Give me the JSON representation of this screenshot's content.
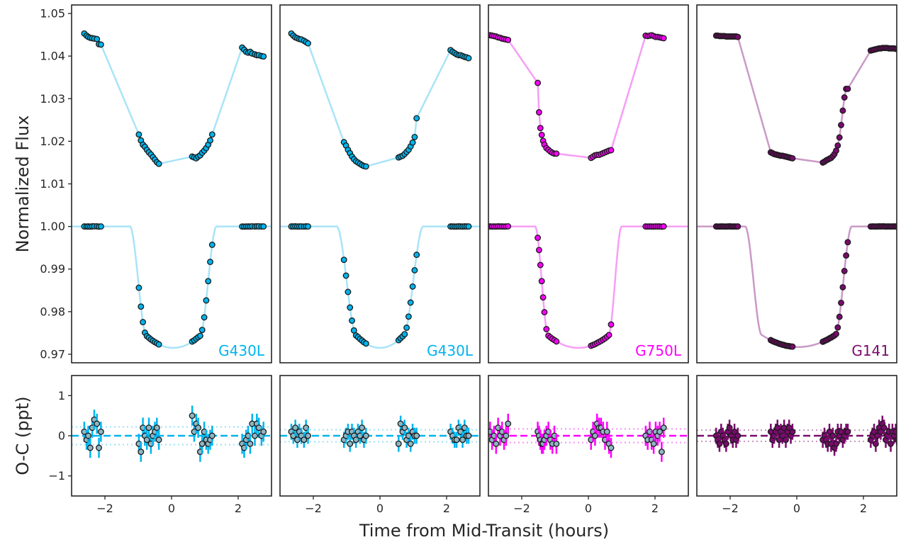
{
  "figure": {
    "ylabel_top": "Normalized Flux",
    "ylabel_bottom": "O-C (ppt)",
    "xlabel": "Time from Mid-Transit (hours)"
  },
  "chart_data": {
    "type": "line",
    "description_axes": {
      "top_ylim": [
        0.968,
        1.052
      ],
      "top_yticks": [
        0.97,
        0.98,
        0.99,
        1.0,
        1.01,
        1.02,
        1.03,
        1.04,
        1.05
      ],
      "top_ytick_labels": [
        "0.97",
        "0.98",
        "0.99",
        "1.00",
        "1.01",
        "1.02",
        "1.03",
        "1.04",
        "1.05"
      ],
      "bottom_ylim": [
        -1.5,
        1.5
      ],
      "bottom_yticks": [
        -1,
        0,
        1
      ],
      "bottom_ytick_labels": [
        "−1",
        "0",
        "1"
      ],
      "xlim": [
        -3.0,
        3.0
      ],
      "xticks": [
        -2,
        0,
        2
      ],
      "xtick_labels": [
        "−2",
        "0",
        "2"
      ],
      "grid": false
    },
    "panels": [
      {
        "instrument": "G430L",
        "color": "#00b4ee",
        "model_color": "#a8e4f8",
        "transit": {
          "t14": 2.6,
          "t23": 1.6,
          "depth": 0.0285,
          "t0": 0.05
        },
        "detrended_offset": 0.0,
        "raw": {
          "offset": 0.043,
          "ramp": "linear",
          "points_x": [
            -2.62,
            -2.55,
            -2.5,
            -2.44,
            -2.38,
            -2.32,
            -2.24,
            -2.18,
            -2.12,
            -0.98,
            -0.92,
            -0.86,
            -0.8,
            -0.74,
            -0.68,
            -0.62,
            -0.56,
            -0.5,
            -0.44,
            -0.38,
            0.62,
            0.68,
            0.74,
            0.8,
            0.86,
            0.92,
            0.98,
            1.04,
            1.1,
            1.16,
            1.22,
            2.12,
            2.18,
            2.24,
            2.3,
            2.36,
            2.42,
            2.5,
            2.56,
            2.62,
            2.7,
            2.76
          ],
          "points_y": [
            1.0453,
            1.0448,
            1.0445,
            1.0443,
            1.0442,
            1.0441,
            1.044,
            1.0428,
            1.0427,
            1.0216,
            1.0202,
            1.0192,
            1.0187,
            1.018,
            1.0174,
            1.0169,
            1.0163,
            1.0157,
            1.0151,
            1.0147,
            1.0164,
            1.0162,
            1.016,
            1.0164,
            1.0167,
            1.0173,
            1.0178,
            1.0184,
            1.0192,
            1.0202,
            1.0216,
            1.042,
            1.0415,
            1.041,
            1.0408,
            1.041,
            1.0406,
            1.0404,
            1.0402,
            1.0402,
            1.04,
            1.0399
          ]
        },
        "detrended_points_x": [
          -2.62,
          -2.55,
          -2.5,
          -2.44,
          -2.38,
          -2.32,
          -2.24,
          -2.18,
          -2.12,
          -0.98,
          -0.92,
          -0.86,
          -0.8,
          -0.74,
          -0.68,
          -0.62,
          -0.56,
          -0.5,
          -0.44,
          -0.38,
          0.62,
          0.68,
          0.74,
          0.8,
          0.86,
          0.92,
          0.98,
          1.04,
          1.1,
          1.16,
          1.22,
          2.12,
          2.18,
          2.24,
          2.3,
          2.36,
          2.42,
          2.5,
          2.56,
          2.62,
          2.7,
          2.76
        ],
        "residuals_ppt": [
          0.1,
          -0.1,
          0.0,
          -0.3,
          0.2,
          0.4,
          0.3,
          -0.3,
          0.1,
          -0.2,
          -0.4,
          0.2,
          0.0,
          -0.1,
          0.2,
          -0.2,
          0.0,
          0.1,
          0.2,
          -0.1,
          0.5,
          0.1,
          0.3,
          0.2,
          -0.4,
          -0.2,
          0.1,
          -0.1,
          -0.2,
          -0.1,
          0.0,
          -0.2,
          -0.3,
          -0.1,
          0.0,
          -0.2,
          0.3,
          0.0,
          0.3,
          0.2,
          0.0,
          0.1
        ],
        "residual_errors_ppt": 0.25,
        "rms_ppt": 0.22
      },
      {
        "instrument": "G430L",
        "color": "#00b4ee",
        "model_color": "#a8e4f8",
        "transit": {
          "t14": 2.6,
          "t23": 1.4,
          "depth": 0.0285,
          "t0": 0.0
        },
        "detrended_offset": 0.0,
        "raw": {
          "offset": 0.043,
          "ramp": "linear",
          "points_x": [
            -2.66,
            -2.6,
            -2.54,
            -2.48,
            -2.42,
            -2.36,
            -2.28,
            -2.22,
            -2.16,
            -1.08,
            -1.02,
            -0.96,
            -0.9,
            -0.84,
            -0.78,
            -0.72,
            -0.66,
            -0.6,
            -0.54,
            -0.48,
            -0.42,
            0.56,
            0.62,
            0.68,
            0.74,
            0.8,
            0.86,
            0.92,
            0.98,
            1.04,
            1.1,
            2.12,
            2.18,
            2.24,
            2.3,
            2.36,
            2.42,
            2.48,
            2.54,
            2.6,
            2.66
          ],
          "points_y": [
            1.0453,
            1.0448,
            1.0444,
            1.0442,
            1.044,
            1.0439,
            1.0436,
            1.0433,
            1.043,
            1.0198,
            1.019,
            1.018,
            1.0172,
            1.0164,
            1.0158,
            1.0153,
            1.015,
            1.0147,
            1.0144,
            1.0142,
            1.0141,
            1.0162,
            1.0164,
            1.0166,
            1.017,
            1.0175,
            1.018,
            1.0188,
            1.0197,
            1.021,
            1.0254,
            1.0414,
            1.041,
            1.0407,
            1.0404,
            1.0402,
            1.0402,
            1.04,
            1.0398,
            1.0397,
            1.0395
          ]
        },
        "detrended_points_x": [
          -2.66,
          -2.6,
          -2.54,
          -2.48,
          -2.42,
          -2.36,
          -2.28,
          -2.22,
          -2.16,
          -1.08,
          -1.02,
          -0.96,
          -0.9,
          -0.84,
          -0.78,
          -0.72,
          -0.66,
          -0.6,
          -0.54,
          -0.48,
          -0.42,
          0.56,
          0.62,
          0.68,
          0.74,
          0.8,
          0.86,
          0.92,
          0.98,
          1.04,
          1.1,
          2.12,
          2.18,
          2.24,
          2.3,
          2.36,
          2.42,
          2.48,
          2.54,
          2.6,
          2.66
        ],
        "residuals_ppt": [
          0.1,
          0.0,
          0.2,
          -0.1,
          0.1,
          0.0,
          -0.1,
          0.2,
          0.0,
          -0.1,
          0.0,
          0.1,
          -0.2,
          0.1,
          0.0,
          -0.1,
          0.1,
          0.0,
          0.2,
          -0.1,
          0.0,
          -0.2,
          0.3,
          0.1,
          0.2,
          -0.1,
          0.0,
          -0.2,
          0.1,
          0.0,
          0.0,
          0.1,
          0.0,
          -0.1,
          -0.1,
          0.2,
          0.1,
          -0.1,
          0.2,
          0.0,
          0.0
        ],
        "residual_errors_ppt": 0.2,
        "rms_ppt": 0.15
      },
      {
        "instrument": "G750L",
        "color": "#ff00ff",
        "model_color": "#f79ef7",
        "transit": {
          "t14": 2.6,
          "t23": 1.8,
          "depth": 0.0285,
          "t0": -0.3
        },
        "detrended_offset": 0.0,
        "raw": {
          "offset": 0.0445,
          "ramp": "flat",
          "points_x": [
            -2.95,
            -2.89,
            -2.83,
            -2.77,
            -2.71,
            -2.65,
            -2.59,
            -2.53,
            -2.47,
            -2.41,
            -1.52,
            -1.48,
            -1.44,
            -1.4,
            -1.36,
            -1.32,
            -1.26,
            -1.2,
            -1.14,
            -1.08,
            -1.02,
            -0.96,
            0.08,
            0.14,
            0.2,
            0.26,
            0.32,
            0.38,
            0.44,
            0.5,
            0.56,
            0.62,
            0.68,
            1.72,
            1.78,
            1.84,
            1.9,
            1.96,
            2.02,
            2.08,
            2.14,
            2.2,
            2.26
          ],
          "points_y": [
            1.0449,
            1.0448,
            1.0447,
            1.0446,
            1.0444,
            1.0443,
            1.0441,
            1.044,
            1.0439,
            1.0438,
            1.0337,
            1.0268,
            1.0231,
            1.0215,
            1.0201,
            1.0192,
            1.0184,
            1.018,
            1.0176,
            1.0173,
            1.0171,
            1.0171,
            1.0161,
            1.0164,
            1.0167,
            1.0168,
            1.0168,
            1.017,
            1.0172,
            1.0174,
            1.0176,
            1.0178,
            1.0179,
            1.0448,
            1.0447,
            1.0448,
            1.0449,
            1.0447,
            1.0445,
            1.0445,
            1.0444,
            1.0443,
            1.0442
          ]
        },
        "detrended_points_x": [
          -2.95,
          -2.89,
          -2.83,
          -2.77,
          -2.71,
          -2.65,
          -2.59,
          -2.53,
          -2.47,
          -2.41,
          -1.52,
          -1.48,
          -1.44,
          -1.4,
          -1.36,
          -1.32,
          -1.26,
          -1.2,
          -1.14,
          -1.08,
          -1.02,
          -0.96,
          0.08,
          0.14,
          0.2,
          0.26,
          0.32,
          0.38,
          0.44,
          0.5,
          0.56,
          0.62,
          0.68,
          1.72,
          1.78,
          1.84,
          1.9,
          1.96,
          2.02,
          2.08,
          2.14,
          2.2,
          2.26
        ],
        "residuals_ppt": [
          0.1,
          -0.1,
          0.0,
          -0.2,
          0.2,
          0.0,
          0.1,
          -0.1,
          0.0,
          0.3,
          0.1,
          0.0,
          -0.1,
          -0.2,
          -0.2,
          -0.1,
          0.0,
          0.1,
          -0.1,
          -0.2,
          0.0,
          -0.2,
          -0.1,
          0.1,
          0.0,
          0.3,
          0.2,
          0.2,
          0.1,
          -0.1,
          0.1,
          -0.2,
          -0.3,
          0.0,
          -0.1,
          0.1,
          -0.1,
          -0.2,
          0.1,
          0.0,
          0.1,
          -0.4,
          0.2
        ],
        "residual_errors_ppt": 0.25,
        "rms_ppt": 0.17
      },
      {
        "instrument": "G141",
        "color": "#7a0a6e",
        "model_color": "#c99ac6",
        "transit": {
          "t14": 3.2,
          "t23": 2.2,
          "depth": 0.0283,
          "t0": 0.05
        },
        "detrended_offset": 0.0,
        "raw": {
          "offset": 0.0444,
          "ramp": "exp",
          "points_x": [
            -2.42,
            -2.37,
            -2.32,
            -2.27,
            -2.22,
            -2.17,
            -2.12,
            -2.07,
            -2.02,
            -1.97,
            -1.92,
            -1.87,
            -1.82,
            -1.77,
            -0.78,
            -0.73,
            -0.68,
            -0.63,
            -0.58,
            -0.53,
            -0.48,
            -0.43,
            -0.38,
            -0.33,
            -0.28,
            -0.23,
            -0.18,
            -0.13,
            0.78,
            0.83,
            0.88,
            0.93,
            0.98,
            1.03,
            1.08,
            1.13,
            1.18,
            1.23,
            1.28,
            1.33,
            1.38,
            1.43,
            1.48,
            1.53,
            2.22,
            2.27,
            2.32,
            2.37,
            2.42,
            2.47,
            2.52,
            2.57,
            2.62,
            2.67,
            2.72,
            2.77,
            2.82,
            2.87,
            2.92,
            2.97,
            3.02,
            3.07
          ],
          "points_y": [
            1.0448,
            1.0448,
            1.0447,
            1.0447,
            1.0447,
            1.0447,
            1.0446,
            1.0446,
            1.0446,
            1.0446,
            1.0446,
            1.0446,
            1.0446,
            1.0445,
            1.0174,
            1.0172,
            1.017,
            1.0169,
            1.0168,
            1.0167,
            1.0166,
            1.0166,
            1.0165,
            1.0164,
            1.0163,
            1.0162,
            1.0161,
            1.016,
            1.015,
            1.0152,
            1.0155,
            1.0157,
            1.0159,
            1.0161,
            1.0165,
            1.017,
            1.0178,
            1.019,
            1.0209,
            1.0238,
            1.0272,
            1.0303,
            1.0323,
            1.0323,
            1.0413,
            1.0414,
            1.0415,
            1.0416,
            1.0417,
            1.0418,
            1.0418,
            1.0419,
            1.0419,
            1.0419,
            1.0419,
            1.0418,
            1.0418,
            1.0418,
            1.0418,
            1.0417,
            1.0417,
            1.0416
          ]
        },
        "detrended_points_x": [
          -2.42,
          -2.37,
          -2.32,
          -2.27,
          -2.22,
          -2.17,
          -2.12,
          -2.07,
          -2.02,
          -1.97,
          -1.92,
          -1.87,
          -1.82,
          -1.77,
          -0.78,
          -0.73,
          -0.68,
          -0.63,
          -0.58,
          -0.53,
          -0.48,
          -0.43,
          -0.38,
          -0.33,
          -0.28,
          -0.23,
          -0.18,
          -0.13,
          0.78,
          0.83,
          0.88,
          0.93,
          0.98,
          1.03,
          1.08,
          1.13,
          1.18,
          1.23,
          1.28,
          1.33,
          1.38,
          1.43,
          1.48,
          1.53,
          2.22,
          2.27,
          2.32,
          2.37,
          2.42,
          2.47,
          2.52,
          2.57,
          2.62,
          2.67,
          2.72,
          2.77,
          2.82,
          2.87,
          2.92,
          2.97,
          3.02,
          3.07
        ],
        "residuals_ppt": [
          0.0,
          -0.1,
          -0.2,
          0.1,
          0.0,
          -0.1,
          -0.2,
          0.1,
          0.2,
          0.0,
          -0.1,
          0.1,
          -0.1,
          0.0,
          0.1,
          -0.1,
          0.0,
          0.1,
          0.2,
          -0.1,
          0.1,
          0.0,
          0.2,
          -0.1,
          0.1,
          0.2,
          0.0,
          0.1,
          -0.1,
          0.0,
          -0.1,
          -0.2,
          0.1,
          -0.2,
          0.0,
          -0.3,
          -0.2,
          0.1,
          0.0,
          0.1,
          -0.1,
          0.0,
          0.1,
          0.1,
          -0.1,
          0.0,
          0.1,
          -0.2,
          0.0,
          0.2,
          0.1,
          0.3,
          0.2,
          -0.1,
          0.0,
          0.1,
          -0.2,
          0.1,
          0.0,
          0.1,
          -0.1,
          -0.2
        ],
        "residual_errors_ppt": 0.2,
        "rms_ppt": 0.14
      }
    ]
  }
}
